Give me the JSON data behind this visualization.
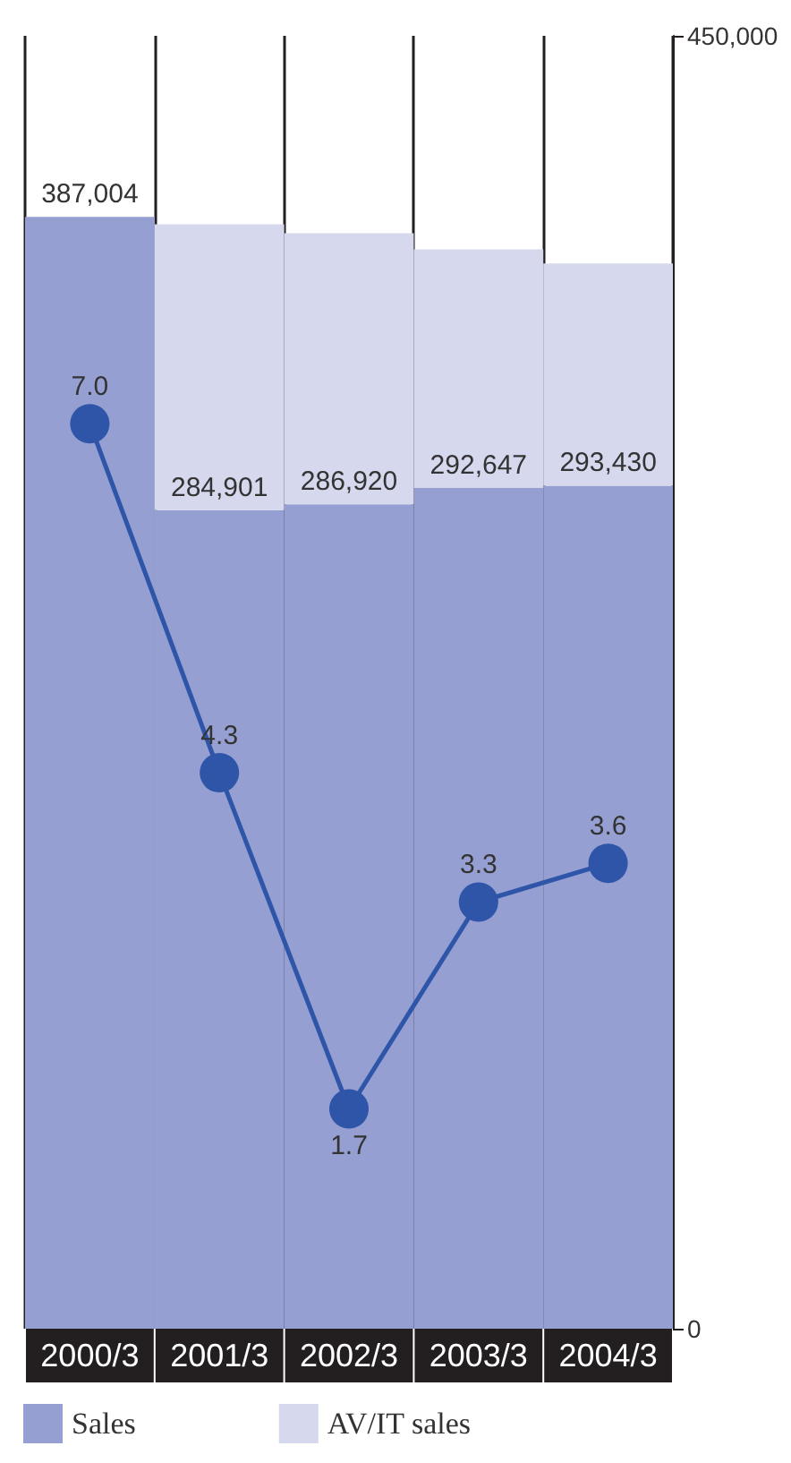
{
  "chart_data": {
    "type": "bar",
    "stacked": true,
    "categories": [
      "2000/3",
      "2001/3",
      "2002/3",
      "2003/3",
      "2004/3"
    ],
    "series": [
      {
        "name": "Sales",
        "color": "#959fd2",
        "values": [
          387004,
          284901,
          286920,
          292647,
          293430
        ],
        "value_labels": [
          "387,004",
          "284,901",
          "286,920",
          "292,647",
          "293,430"
        ]
      },
      {
        "name": "AV/IT sales",
        "color": "#d6d8ee",
        "values": [
          null,
          99500,
          94400,
          83000,
          77300
        ]
      },
      {
        "type": "line",
        "axis": "y2",
        "color": "#2f55a8",
        "values": [
          7.0,
          4.3,
          1.7,
          3.3,
          3.6
        ],
        "value_labels": [
          "7.0",
          "4.3",
          "1.7",
          "3.3",
          "3.6"
        ],
        "marker": "circle"
      }
    ],
    "ylim": [
      0,
      450000
    ],
    "yticks": [
      0,
      {
        "value": 450000,
        "label": "450,000"
      }
    ],
    "y2lim": [
      0,
      10
    ],
    "grid": "x",
    "legend": "bottom left"
  }
}
